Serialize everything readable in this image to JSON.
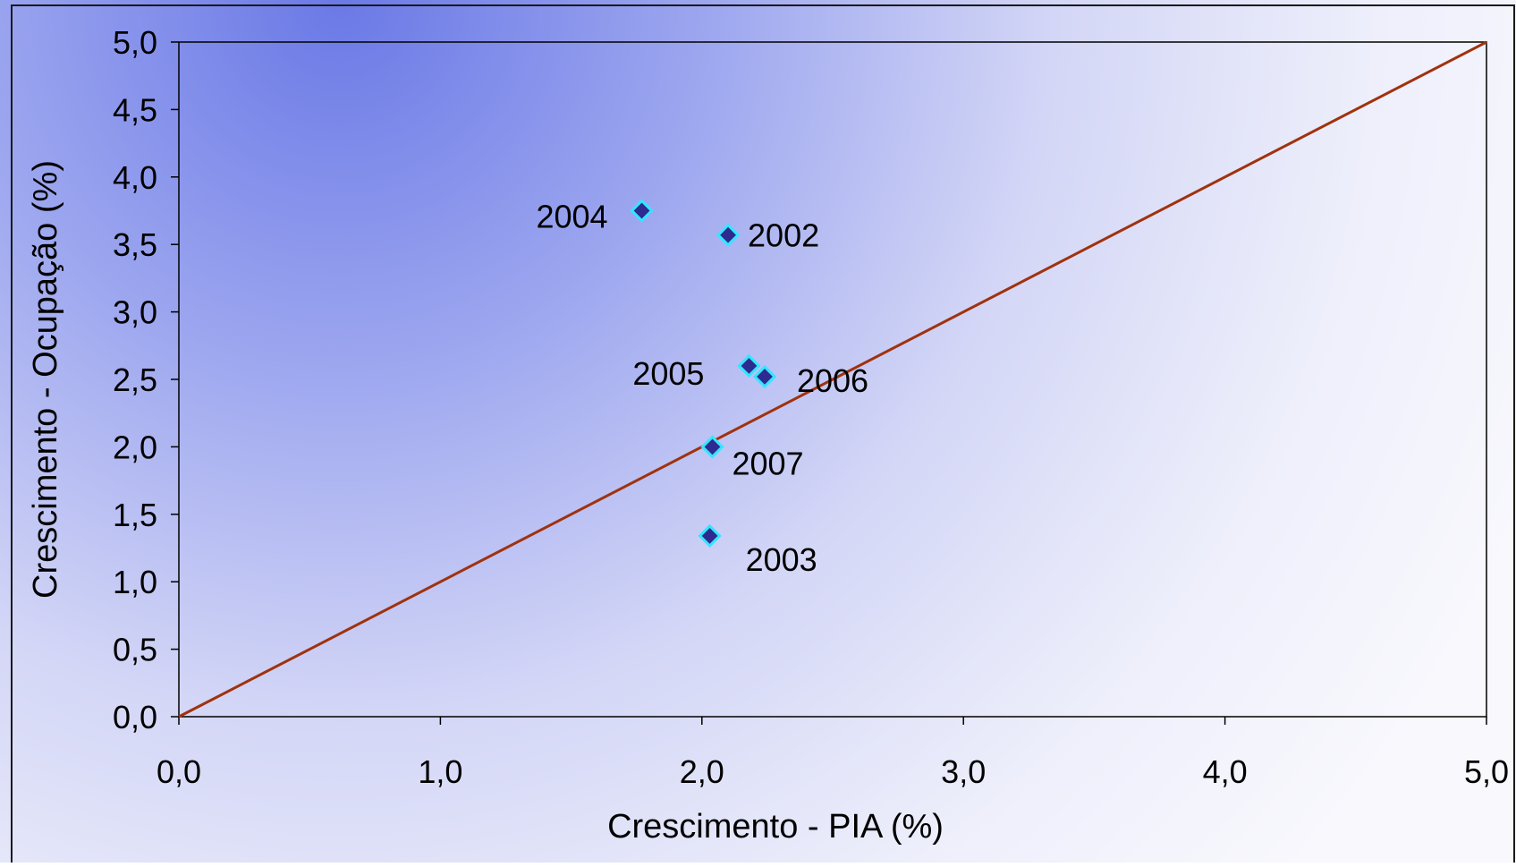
{
  "chart_data": {
    "type": "scatter",
    "title": "",
    "xlabel": "Crescimento - PIA (%)",
    "ylabel": "Crescimento - Ocupação (%)",
    "xlim": [
      0,
      5
    ],
    "ylim": [
      0,
      5
    ],
    "x_ticks": [
      "0,0",
      "1,0",
      "2,0",
      "3,0",
      "4,0",
      "5,0"
    ],
    "y_ticks": [
      "0,0",
      "0,5",
      "1,0",
      "1,5",
      "2,0",
      "2,5",
      "3,0",
      "3,5",
      "4,0",
      "4,5",
      "5,0"
    ],
    "points": [
      {
        "label": "2002",
        "x": 2.1,
        "y": 3.57
      },
      {
        "label": "2003",
        "x": 2.03,
        "y": 1.34
      },
      {
        "label": "2004",
        "x": 1.77,
        "y": 3.75
      },
      {
        "label": "2005",
        "x": 2.18,
        "y": 2.6
      },
      {
        "label": "2006",
        "x": 2.24,
        "y": 2.52
      },
      {
        "label": "2007",
        "x": 2.04,
        "y": 2.0
      }
    ],
    "reference_line": {
      "x": [
        0,
        5
      ],
      "y": [
        0,
        5
      ]
    },
    "grid": false,
    "colors": {
      "marker_fill": "#2e2a8f",
      "marker_edge": "#33e6ff",
      "reference_line": "#a0320e",
      "background_accent": "#6a79e6"
    }
  }
}
